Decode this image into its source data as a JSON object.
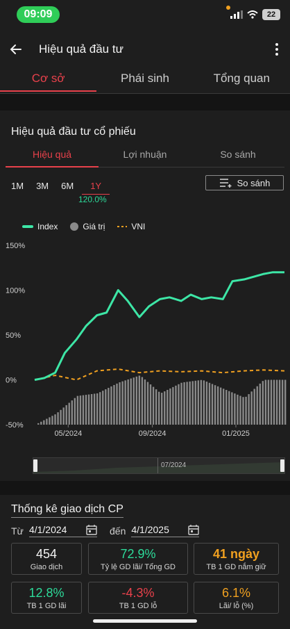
{
  "status_bar": {
    "time": "09:09",
    "battery": "22"
  },
  "header": {
    "title": "Hiệu quả đầu tư",
    "back_icon": "back-arrow-icon",
    "more_icon": "more-vertical-icon"
  },
  "main_tabs": [
    {
      "label": "Cơ sở",
      "active": true
    },
    {
      "label": "Phái sinh",
      "active": false
    },
    {
      "label": "Tổng quan",
      "active": false
    }
  ],
  "performance": {
    "title": "Hiệu quả đầu tư cổ phiếu",
    "sub_tabs": [
      {
        "label": "Hiệu quả",
        "active": true
      },
      {
        "label": "Lợi nhuận",
        "active": false
      },
      {
        "label": "So sánh",
        "active": false
      }
    ],
    "periods": [
      "1M",
      "3M",
      "6M",
      "1Y"
    ],
    "active_period": "1Y",
    "period_return": "120.0%",
    "compare_button": "So sánh",
    "legend": {
      "index": "Index",
      "value": "Giá trị",
      "vni": "VNI"
    },
    "scroller_label": "07/2024"
  },
  "colors": {
    "accent": "#e8414b",
    "index_line": "#3de6a6",
    "vni_line": "#f0a020",
    "bars": "#8a8a8a",
    "positive": "#2ddb9a",
    "negative": "#e8414b",
    "warning": "#f0a020"
  },
  "chart_data": {
    "type": "line",
    "y_axis": {
      "ticks": [
        "150%",
        "100%",
        "50%",
        "0%",
        "-50%"
      ],
      "ylim": [
        -50,
        150
      ]
    },
    "x_axis": {
      "ticks": [
        "05/2024",
        "09/2024",
        "01/2025"
      ],
      "range": [
        "2024-04-01",
        "2025-04-01"
      ]
    },
    "series": [
      {
        "name": "Index",
        "x": [
          "2024-04-01",
          "2024-04-15",
          "2024-05-01",
          "2024-05-15",
          "2024-06-01",
          "2024-06-15",
          "2024-07-01",
          "2024-07-15",
          "2024-08-01",
          "2024-08-15",
          "2024-09-01",
          "2024-09-15",
          "2024-10-01",
          "2024-10-15",
          "2024-11-01",
          "2024-11-15",
          "2024-12-01",
          "2024-12-15",
          "2025-01-01",
          "2025-01-15",
          "2025-02-01",
          "2025-02-15",
          "2025-03-01",
          "2025-03-15",
          "2025-04-01"
        ],
        "values": [
          0,
          2,
          8,
          30,
          45,
          60,
          72,
          75,
          100,
          88,
          70,
          82,
          90,
          92,
          88,
          95,
          90,
          92,
          90,
          110,
          112,
          115,
          118,
          120,
          120
        ]
      },
      {
        "name": "VNI",
        "x": [
          "2024-04-01",
          "2024-05-01",
          "2024-06-01",
          "2024-07-01",
          "2024-08-01",
          "2024-09-01",
          "2024-10-01",
          "2024-11-01",
          "2024-12-01",
          "2025-01-01",
          "2025-02-01",
          "2025-03-01",
          "2025-04-01"
        ],
        "values": [
          0,
          5,
          0,
          10,
          12,
          8,
          10,
          9,
          10,
          8,
          10,
          11,
          10
        ]
      },
      {
        "name": "Giá trị",
        "type": "bar",
        "x": [
          "2024-04-01",
          "2024-05-01",
          "2024-06-01",
          "2024-07-01",
          "2024-08-01",
          "2024-09-01",
          "2024-10-01",
          "2024-11-01",
          "2024-12-01",
          "2025-01-01",
          "2025-02-01",
          "2025-03-01",
          "2025-04-01"
        ],
        "values": [
          -50,
          -38,
          -18,
          -15,
          -3,
          5,
          -15,
          -3,
          0,
          -10,
          -20,
          0,
          0
        ]
      }
    ]
  },
  "stats": {
    "title": "Thống kê giao dịch CP",
    "from_label": "Từ",
    "from_date": "4/1/2024",
    "to_label": "đến",
    "to_date": "4/1/2025",
    "boxes": [
      {
        "value": "454",
        "label": "Giao dịch",
        "tone": "neutral"
      },
      {
        "value": "72.9%",
        "label": "Tỷ lệ GD lãi/ Tổng GD",
        "tone": "positive"
      },
      {
        "value": "41 ngày",
        "label": "TB 1 GD nắm giữ",
        "tone": "warning"
      },
      {
        "value": "12.8%",
        "label": "TB 1 GD lãi",
        "tone": "positive"
      },
      {
        "value": "-4.3%",
        "label": "TB 1 GD lỗ",
        "tone": "negative"
      },
      {
        "value": "6.1%",
        "label": "Lãi/ lỗ (%)",
        "tone": "warning"
      }
    ]
  }
}
